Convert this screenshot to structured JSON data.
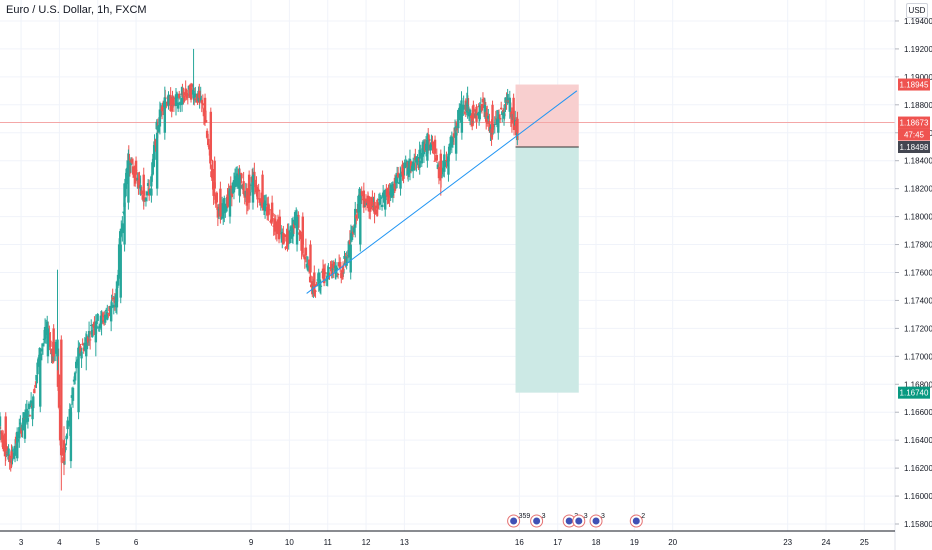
{
  "header": {
    "title": "Euro / U.S. Dollar, 1h, FXCM",
    "currency": "USD"
  },
  "colors": {
    "up": "#26a69a",
    "down": "#ef5350",
    "trendline": "#2196f3",
    "stop_zone": "#f8cfcf",
    "target_zone": "#cce9e5",
    "entry_line": "#333333",
    "current_price_line": "#f4a7a7"
  },
  "chart_data": {
    "type": "candlestick",
    "symbol": "EURUSD",
    "timeframe": "1h",
    "ylim": [
      1.1575,
      1.1955
    ],
    "y_ticks": [
      "1.19400",
      "1.19200",
      "1.19000",
      "1.18800",
      "1.18600",
      "1.18400",
      "1.18200",
      "1.18000",
      "1.17800",
      "1.17600",
      "1.17400",
      "1.17200",
      "1.17000",
      "1.16800",
      "1.16600",
      "1.16400",
      "1.16200",
      "1.16000",
      "1.15800"
    ],
    "x_day_range": [
      2.45,
      25.8
    ],
    "x_ticks": [
      {
        "day": 3,
        "label": "3"
      },
      {
        "day": 4,
        "label": "4"
      },
      {
        "day": 5,
        "label": "5"
      },
      {
        "day": 6,
        "label": "6"
      },
      {
        "day": 9,
        "label": "9"
      },
      {
        "day": 10,
        "label": "10"
      },
      {
        "day": 11,
        "label": "11"
      },
      {
        "day": 12,
        "label": "12"
      },
      {
        "day": 13,
        "label": "13"
      },
      {
        "day": 16,
        "label": "16"
      },
      {
        "day": 17,
        "label": "17"
      },
      {
        "day": 18,
        "label": "18"
      },
      {
        "day": 19,
        "label": "19"
      },
      {
        "day": 20,
        "label": "20"
      },
      {
        "day": 23,
        "label": "23"
      },
      {
        "day": 24,
        "label": "24"
      },
      {
        "day": 25,
        "label": "25"
      }
    ],
    "price_path": [
      [
        2.45,
        1.165
      ],
      [
        2.6,
        1.1635
      ],
      [
        2.75,
        1.1625
      ],
      [
        2.9,
        1.164
      ],
      [
        3.1,
        1.1655
      ],
      [
        3.3,
        1.1665
      ],
      [
        3.5,
        1.17
      ],
      [
        3.7,
        1.172
      ],
      [
        3.85,
        1.17
      ],
      [
        3.95,
        1.171
      ],
      [
        4.05,
        1.164
      ],
      [
        4.12,
        1.1625
      ],
      [
        4.3,
        1.166
      ],
      [
        4.5,
        1.17
      ],
      [
        4.7,
        1.171
      ],
      [
        4.95,
        1.1725
      ],
      [
        5.1,
        1.1725
      ],
      [
        5.35,
        1.1735
      ],
      [
        5.5,
        1.174
      ],
      [
        5.6,
        1.178
      ],
      [
        5.7,
        1.181
      ],
      [
        5.8,
        1.184
      ],
      [
        6.0,
        1.183
      ],
      [
        6.2,
        1.1815
      ],
      [
        6.4,
        1.182
      ],
      [
        6.55,
        1.186
      ],
      [
        6.75,
        1.1885
      ],
      [
        6.95,
        1.188
      ],
      [
        7.2,
        1.1885
      ],
      [
        7.5,
        1.189
      ],
      [
        7.65,
        1.1885
      ],
      [
        7.8,
        1.1875
      ],
      [
        7.95,
        1.184
      ],
      [
        8.05,
        1.182
      ],
      [
        8.2,
        1.18
      ],
      [
        8.45,
        1.1815
      ],
      [
        8.7,
        1.183
      ],
      [
        8.95,
        1.181
      ],
      [
        9.05,
        1.183
      ],
      [
        9.3,
        1.181
      ],
      [
        9.55,
        1.18
      ],
      [
        9.75,
        1.179
      ],
      [
        9.95,
        1.178
      ],
      [
        10.2,
        1.18
      ],
      [
        10.35,
        1.178
      ],
      [
        10.55,
        1.176
      ],
      [
        10.65,
        1.1745
      ],
      [
        10.8,
        1.1755
      ],
      [
        11.0,
        1.176
      ],
      [
        11.2,
        1.1765
      ],
      [
        11.4,
        1.176
      ],
      [
        11.6,
        1.178
      ],
      [
        11.85,
        1.1815
      ],
      [
        12.05,
        1.181
      ],
      [
        12.3,
        1.1805
      ],
      [
        12.5,
        1.1815
      ],
      [
        12.7,
        1.182
      ],
      [
        12.9,
        1.183
      ],
      [
        13.1,
        1.1835
      ],
      [
        13.4,
        1.184
      ],
      [
        13.6,
        1.1855
      ],
      [
        13.8,
        1.1845
      ],
      [
        13.95,
        1.183
      ],
      [
        14.15,
        1.1845
      ],
      [
        14.35,
        1.186
      ],
      [
        14.5,
        1.188
      ],
      [
        14.65,
        1.188
      ],
      [
        14.8,
        1.187
      ],
      [
        14.95,
        1.1875
      ],
      [
        15.1,
        1.188
      ],
      [
        15.3,
        1.186
      ],
      [
        15.45,
        1.187
      ],
      [
        15.6,
        1.1875
      ],
      [
        15.75,
        1.1885
      ],
      [
        15.85,
        1.187
      ],
      [
        15.95,
        1.186
      ]
    ],
    "candles": [
      [
        2.45,
        1.165,
        1.166,
        1.164,
        1.1657
      ],
      [
        2.6,
        1.1657,
        1.166,
        1.1625,
        1.1632
      ],
      [
        2.75,
        1.1632,
        1.1637,
        1.162,
        1.1627
      ],
      [
        2.9,
        1.1627,
        1.1645,
        1.1625,
        1.1641
      ],
      [
        3.1,
        1.1641,
        1.166,
        1.1638,
        1.1655
      ],
      [
        3.3,
        1.1655,
        1.1668,
        1.165,
        1.1664
      ],
      [
        3.5,
        1.1664,
        1.1705,
        1.166,
        1.17
      ],
      [
        3.7,
        1.17,
        1.1725,
        1.1695,
        1.172
      ],
      [
        3.85,
        1.172,
        1.1723,
        1.1695,
        1.17
      ],
      [
        3.95,
        1.17,
        1.1762,
        1.169,
        1.1712
      ],
      [
        4.05,
        1.1712,
        1.1715,
        1.1604,
        1.164
      ],
      [
        4.12,
        1.164,
        1.165,
        1.1615,
        1.1625
      ],
      [
        4.3,
        1.1625,
        1.1665,
        1.162,
        1.166
      ],
      [
        4.5,
        1.166,
        1.1705,
        1.1655,
        1.17
      ],
      [
        4.7,
        1.17,
        1.1718,
        1.169,
        1.171
      ],
      [
        4.95,
        1.171,
        1.173,
        1.17,
        1.1725
      ],
      [
        5.1,
        1.1725,
        1.1733,
        1.1715,
        1.1725
      ],
      [
        5.35,
        1.1725,
        1.174,
        1.1718,
        1.1735
      ],
      [
        5.5,
        1.1735,
        1.1748,
        1.173,
        1.1742
      ],
      [
        5.6,
        1.1742,
        1.1785,
        1.1738,
        1.178
      ],
      [
        5.7,
        1.178,
        1.1815,
        1.1775,
        1.181
      ],
      [
        5.8,
        1.181,
        1.1848,
        1.1805,
        1.184
      ],
      [
        6.0,
        1.184,
        1.1843,
        1.1825,
        1.183
      ],
      [
        6.2,
        1.183,
        1.1835,
        1.1805,
        1.1815
      ],
      [
        6.4,
        1.1815,
        1.1825,
        1.181,
        1.182
      ],
      [
        6.55,
        1.182,
        1.1865,
        1.1815,
        1.186
      ],
      [
        6.75,
        1.186,
        1.1893,
        1.1855,
        1.1885
      ],
      [
        6.95,
        1.1885,
        1.189,
        1.1875,
        1.188
      ],
      [
        7.2,
        1.188,
        1.1893,
        1.1875,
        1.1885
      ],
      [
        7.5,
        1.1885,
        1.192,
        1.188,
        1.189
      ],
      [
        7.65,
        1.189,
        1.1895,
        1.188,
        1.1885
      ],
      [
        7.8,
        1.1885,
        1.1888,
        1.187,
        1.1875
      ],
      [
        7.95,
        1.1875,
        1.1878,
        1.1835,
        1.184
      ],
      [
        8.05,
        1.184,
        1.1843,
        1.1812,
        1.182
      ],
      [
        8.2,
        1.182,
        1.1825,
        1.1795,
        1.18
      ],
      [
        8.45,
        1.18,
        1.182,
        1.1795,
        1.1815
      ],
      [
        8.7,
        1.1815,
        1.1835,
        1.181,
        1.183
      ],
      [
        8.95,
        1.183,
        1.1833,
        1.1805,
        1.181
      ],
      [
        9.05,
        1.181,
        1.1835,
        1.1805,
        1.183
      ],
      [
        9.3,
        1.183,
        1.1833,
        1.1805,
        1.181
      ],
      [
        9.55,
        1.181,
        1.1815,
        1.1795,
        1.18
      ],
      [
        9.75,
        1.18,
        1.1805,
        1.1785,
        1.179
      ],
      [
        9.95,
        1.179,
        1.1795,
        1.1775,
        1.178
      ],
      [
        10.2,
        1.178,
        1.1805,
        1.1775,
        1.18
      ],
      [
        10.35,
        1.18,
        1.1803,
        1.1775,
        1.178
      ],
      [
        10.55,
        1.178,
        1.1783,
        1.1755,
        1.176
      ],
      [
        10.65,
        1.176,
        1.1765,
        1.1743,
        1.1747
      ],
      [
        10.8,
        1.1747,
        1.176,
        1.1745,
        1.1755
      ],
      [
        11.0,
        1.1755,
        1.1765,
        1.175,
        1.176
      ],
      [
        11.2,
        1.176,
        1.177,
        1.1755,
        1.1765
      ],
      [
        11.4,
        1.1765,
        1.1768,
        1.1755,
        1.176
      ],
      [
        11.6,
        1.176,
        1.1785,
        1.1755,
        1.178
      ],
      [
        11.85,
        1.178,
        1.182,
        1.1775,
        1.1815
      ],
      [
        12.05,
        1.1815,
        1.1818,
        1.1805,
        1.181
      ],
      [
        12.3,
        1.181,
        1.1813,
        1.18,
        1.1805
      ],
      [
        12.5,
        1.1805,
        1.182,
        1.18,
        1.1815
      ],
      [
        12.7,
        1.1815,
        1.1825,
        1.181,
        1.182
      ],
      [
        12.9,
        1.182,
        1.1835,
        1.1815,
        1.183
      ],
      [
        13.1,
        1.183,
        1.184,
        1.1825,
        1.1835
      ],
      [
        13.4,
        1.1835,
        1.1845,
        1.183,
        1.184
      ],
      [
        13.6,
        1.184,
        1.186,
        1.1835,
        1.1855
      ],
      [
        13.8,
        1.1855,
        1.1858,
        1.184,
        1.1845
      ],
      [
        13.95,
        1.1845,
        1.1848,
        1.1815,
        1.183
      ],
      [
        14.15,
        1.183,
        1.185,
        1.1825,
        1.1845
      ],
      [
        14.35,
        1.1845,
        1.1865,
        1.184,
        1.186
      ],
      [
        14.5,
        1.186,
        1.1885,
        1.1855,
        1.188
      ],
      [
        14.65,
        1.188,
        1.1893,
        1.187,
        1.188
      ],
      [
        14.8,
        1.188,
        1.1883,
        1.1865,
        1.187
      ],
      [
        14.95,
        1.187,
        1.188,
        1.1865,
        1.1875
      ],
      [
        15.1,
        1.1875,
        1.1885,
        1.187,
        1.188
      ],
      [
        15.3,
        1.188,
        1.1883,
        1.1855,
        1.186
      ],
      [
        15.45,
        1.186,
        1.1875,
        1.1855,
        1.187
      ],
      [
        15.6,
        1.187,
        1.188,
        1.1865,
        1.1875
      ],
      [
        15.75,
        1.1875,
        1.189,
        1.187,
        1.1885
      ],
      [
        15.85,
        1.1885,
        1.1888,
        1.1865,
        1.187
      ],
      [
        15.95,
        1.187,
        1.1875,
        1.1855,
        1.186
      ]
    ],
    "trendline": {
      "from": [
        10.45,
        1.1745
      ],
      "to": [
        17.5,
        1.189
      ]
    },
    "position": {
      "side": "short",
      "start_day": 15.9,
      "end_day": 17.55,
      "entry": 1.18498,
      "stop": 1.18945,
      "target": 1.1674
    },
    "price_labels": {
      "stop": "1.18945",
      "current": "1.18673",
      "countdown": "47:45",
      "entry": "1.18498",
      "target": "1.16740"
    },
    "current_price": 1.18673,
    "events": [
      {
        "day": 15.85,
        "count": "359"
      },
      {
        "day": 16.45,
        "count": "3"
      },
      {
        "day": 17.3,
        "count": "3"
      },
      {
        "day": 17.55,
        "count": "3"
      },
      {
        "day": 18.0,
        "count": "3"
      },
      {
        "day": 19.05,
        "count": "2"
      }
    ],
    "grid": true
  }
}
